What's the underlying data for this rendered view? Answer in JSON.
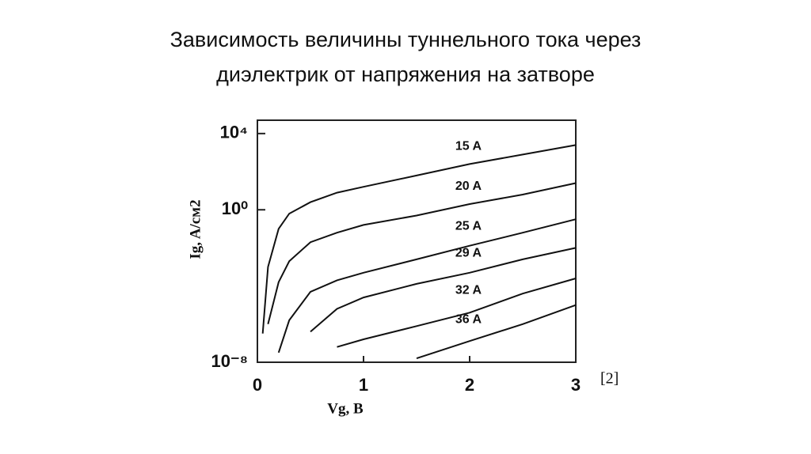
{
  "chart_data": {
    "type": "line",
    "title": [
      "Зависимость величины туннельного тока через",
      "диэлектрик от напряжения на затворе"
    ],
    "x_label": "Vg, B",
    "y_label": "Ig, A/cм2",
    "note": "[2]",
    "log_y": true,
    "xlim": [
      0,
      3
    ],
    "xticks": [
      0,
      1,
      2,
      3
    ],
    "ylim": [
      1e-08,
      50000
    ],
    "yticks": [
      {
        "value": 1e-08,
        "label": "10⁻⁸"
      },
      {
        "value": 1,
        "label": "10⁰"
      },
      {
        "value": 10000,
        "label": "10⁴"
      }
    ],
    "x": [
      0.05,
      0.1,
      0.2,
      0.3,
      0.5,
      0.75,
      1,
      1.5,
      2,
      2.5,
      3
    ],
    "series": [
      {
        "name": "15 A",
        "color": "#111",
        "values": [
          3.2e-07,
          0.001,
          0.1,
          0.63,
          2.5,
          7.9,
          16,
          63,
          250,
          790,
          2500
        ]
      },
      {
        "name": "20 A",
        "color": "#111",
        "values": [
          null,
          1e-06,
          0.00016,
          0.002,
          0.02,
          0.063,
          0.16,
          0.5,
          2,
          6.3,
          25
        ]
      },
      {
        "name": "25 A",
        "color": "#111",
        "values": [
          null,
          null,
          3.2e-08,
          1.6e-06,
          5e-05,
          0.0002,
          0.0005,
          0.0025,
          0.013,
          0.063,
          0.32
        ]
      },
      {
        "name": "29 A",
        "color": "#111",
        "values": [
          null,
          null,
          null,
          null,
          4e-07,
          6.3e-06,
          2.5e-05,
          0.00013,
          0.0005,
          0.0025,
          0.01
        ]
      },
      {
        "name": "32 A",
        "color": "#111",
        "values": [
          null,
          null,
          null,
          null,
          null,
          6.3e-08,
          1.6e-07,
          7.9e-07,
          4e-06,
          4e-05,
          0.00025
        ]
      },
      {
        "name": "36 A",
        "color": "#111",
        "values": [
          null,
          null,
          null,
          null,
          null,
          null,
          null,
          1.6e-08,
          1.3e-07,
          1e-06,
          1e-05
        ]
      }
    ]
  }
}
